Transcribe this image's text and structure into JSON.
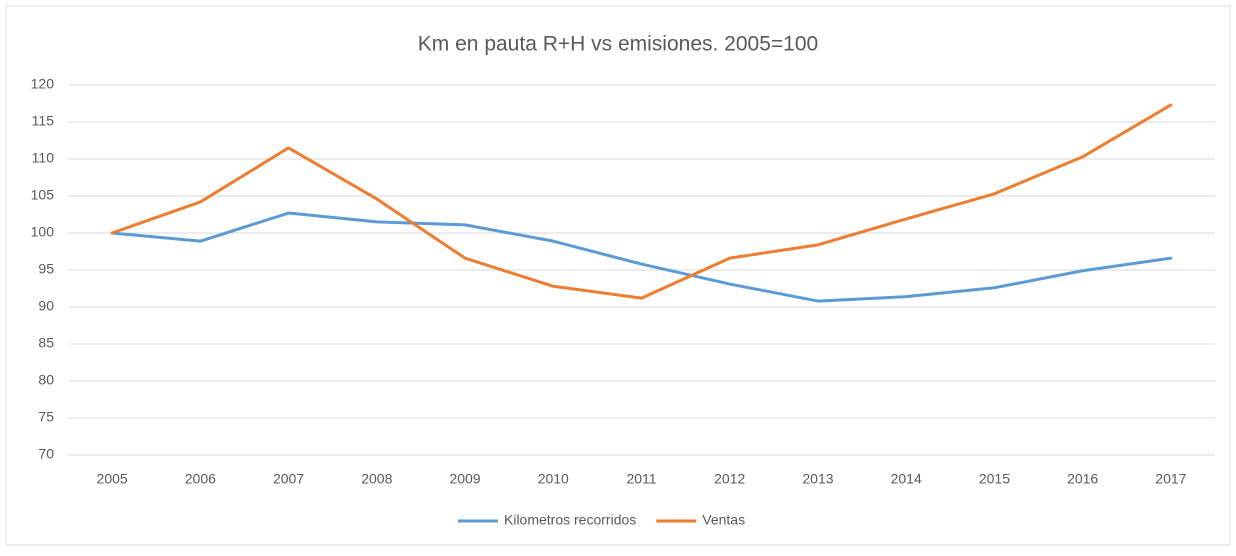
{
  "chart_data": {
    "type": "line",
    "title": "Km en pauta R+H vs emisiones. 2005=100",
    "categories": [
      "2005",
      "2006",
      "2007",
      "2008",
      "2009",
      "2010",
      "2011",
      "2012",
      "2013",
      "2014",
      "2015",
      "2016",
      "2017"
    ],
    "series": [
      {
        "name": "Kilometros recorridos",
        "color": "#5b9bd5",
        "values": [
          100,
          98.9,
          102.7,
          101.5,
          101.1,
          98.9,
          95.8,
          93.1,
          90.8,
          91.4,
          92.6,
          94.9,
          96.6
        ]
      },
      {
        "name": "Ventas",
        "color": "#ed7d31",
        "values": [
          100,
          104.2,
          111.5,
          104.6,
          96.6,
          92.8,
          91.2,
          96.6,
          98.4,
          101.9,
          105.3,
          110.3,
          117.3
        ]
      }
    ],
    "ylim": [
      70,
      120
    ],
    "yticks": [
      70,
      75,
      80,
      85,
      90,
      95,
      100,
      105,
      110,
      115,
      120
    ],
    "grid": true,
    "legend": "bottom"
  }
}
